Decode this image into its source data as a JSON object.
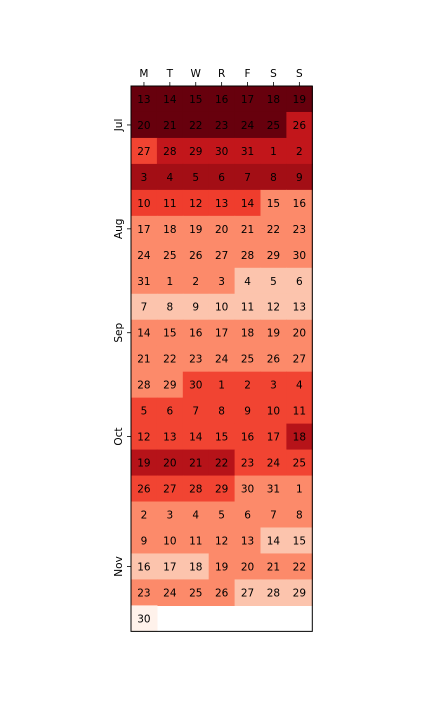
{
  "chart_data": {
    "type": "heatmap",
    "title": "",
    "columns": [
      "M",
      "T",
      "W",
      "R",
      "F",
      "S",
      "S"
    ],
    "month_labels": [
      {
        "label": "Jul",
        "row": 1
      },
      {
        "label": "Aug",
        "row": 5
      },
      {
        "label": "Sep",
        "row": 9
      },
      {
        "label": "Oct",
        "row": 13
      },
      {
        "label": "Nov",
        "row": 18
      }
    ],
    "days": [
      [
        13,
        14,
        15,
        16,
        17,
        18,
        19
      ],
      [
        20,
        21,
        22,
        23,
        24,
        25,
        26
      ],
      [
        27,
        28,
        29,
        30,
        31,
        1,
        2
      ],
      [
        3,
        4,
        5,
        6,
        7,
        8,
        9
      ],
      [
        10,
        11,
        12,
        13,
        14,
        15,
        16
      ],
      [
        17,
        18,
        19,
        20,
        21,
        22,
        23
      ],
      [
        24,
        25,
        26,
        27,
        28,
        29,
        30
      ],
      [
        31,
        1,
        2,
        3,
        4,
        5,
        6
      ],
      [
        7,
        8,
        9,
        10,
        11,
        12,
        13
      ],
      [
        14,
        15,
        16,
        17,
        18,
        19,
        20
      ],
      [
        21,
        22,
        23,
        24,
        25,
        26,
        27
      ],
      [
        28,
        29,
        30,
        1,
        2,
        3,
        4
      ],
      [
        5,
        6,
        7,
        8,
        9,
        10,
        11
      ],
      [
        12,
        13,
        14,
        15,
        16,
        17,
        18
      ],
      [
        19,
        20,
        21,
        22,
        23,
        24,
        25
      ],
      [
        26,
        27,
        28,
        29,
        30,
        31,
        1
      ],
      [
        2,
        3,
        4,
        5,
        6,
        7,
        8
      ],
      [
        9,
        10,
        11,
        12,
        13,
        14,
        15
      ],
      [
        16,
        17,
        18,
        19,
        20,
        21,
        22
      ],
      [
        23,
        24,
        25,
        26,
        27,
        28,
        29
      ],
      [
        30,
        null,
        null,
        null,
        null,
        null,
        null
      ]
    ],
    "values": [
      [
        1.0,
        1.0,
        1.0,
        1.0,
        1.0,
        1.0,
        1.0
      ],
      [
        1.0,
        1.0,
        1.0,
        1.0,
        1.0,
        1.0,
        0.78
      ],
      [
        0.6,
        0.78,
        0.78,
        0.78,
        0.78,
        0.78,
        0.78
      ],
      [
        0.88,
        0.88,
        0.88,
        0.88,
        0.88,
        0.88,
        0.88
      ],
      [
        0.62,
        0.62,
        0.62,
        0.62,
        0.62,
        0.4,
        0.4
      ],
      [
        0.4,
        0.4,
        0.4,
        0.4,
        0.4,
        0.4,
        0.4
      ],
      [
        0.4,
        0.4,
        0.4,
        0.4,
        0.4,
        0.4,
        0.4
      ],
      [
        0.4,
        0.4,
        0.4,
        0.4,
        0.22,
        0.22,
        0.22
      ],
      [
        0.22,
        0.22,
        0.22,
        0.22,
        0.22,
        0.22,
        0.22
      ],
      [
        0.4,
        0.4,
        0.4,
        0.4,
        0.4,
        0.4,
        0.4
      ],
      [
        0.4,
        0.4,
        0.4,
        0.4,
        0.4,
        0.4,
        0.4
      ],
      [
        0.4,
        0.4,
        0.6,
        0.6,
        0.6,
        0.6,
        0.6
      ],
      [
        0.6,
        0.6,
        0.6,
        0.6,
        0.6,
        0.6,
        0.6
      ],
      [
        0.6,
        0.6,
        0.6,
        0.6,
        0.6,
        0.6,
        0.82
      ],
      [
        0.82,
        0.82,
        0.82,
        0.82,
        0.6,
        0.6,
        0.6
      ],
      [
        0.6,
        0.6,
        0.6,
        0.6,
        0.4,
        0.4,
        0.4
      ],
      [
        0.4,
        0.4,
        0.4,
        0.4,
        0.4,
        0.4,
        0.4
      ],
      [
        0.4,
        0.4,
        0.4,
        0.4,
        0.4,
        0.22,
        0.22
      ],
      [
        0.22,
        0.22,
        0.22,
        0.4,
        0.4,
        0.4,
        0.4
      ],
      [
        0.4,
        0.4,
        0.4,
        0.4,
        0.22,
        0.22,
        0.22
      ],
      [
        0.02,
        null,
        null,
        null,
        null,
        null,
        null
      ]
    ],
    "colormap": "Reds",
    "grid": false
  }
}
